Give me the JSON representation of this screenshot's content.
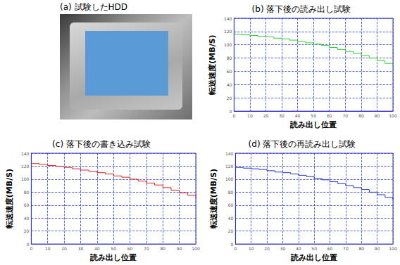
{
  "image_panel": {
    "title": "(a) 試験したHDD"
  },
  "chart_data": [
    {
      "type": "line",
      "title": "(b) 落下後の読み出し試験",
      "x_label": "読み出し位置",
      "y_label": "転送速度(MB/S)",
      "x": [
        0,
        5,
        10,
        15,
        20,
        25,
        30,
        35,
        40,
        45,
        50,
        55,
        60,
        65,
        70,
        75,
        80,
        85,
        90,
        95,
        100
      ],
      "series": [
        {
          "name": "読み出し",
          "color": "#33cc33",
          "line_style": "step",
          "values": [
            116,
            115,
            114,
            113,
            112,
            110,
            109,
            107,
            105,
            103,
            101,
            99,
            96,
            93,
            90,
            87,
            84,
            80,
            76,
            72,
            68
          ]
        }
      ],
      "xlim": [
        0,
        100
      ],
      "xticks": [
        0,
        10,
        20,
        30,
        40,
        50,
        60,
        70,
        80,
        90,
        100
      ],
      "ylim": [
        0,
        140
      ],
      "yticks": [
        0,
        20,
        40,
        60,
        80,
        100,
        120,
        140
      ],
      "grid": true
    },
    {
      "type": "line",
      "title": "(c) 落下後の書き込み試験",
      "x_label": "読み出し位置",
      "y_label": "転送速度(MB/S)",
      "x": [
        0,
        5,
        10,
        15,
        20,
        25,
        30,
        35,
        40,
        45,
        50,
        55,
        60,
        65,
        70,
        75,
        80,
        85,
        90,
        95,
        100
      ],
      "series": [
        {
          "name": "書き込み",
          "color": "#dd2222",
          "line_style": "step",
          "values": [
            124,
            123,
            121,
            120,
            118,
            116,
            114,
            112,
            110,
            108,
            105,
            103,
            100,
            97,
            94,
            91,
            87,
            83,
            79,
            75,
            71
          ]
        }
      ],
      "xlim": [
        0,
        100
      ],
      "xticks": [
        0,
        10,
        20,
        30,
        40,
        50,
        60,
        70,
        80,
        90,
        100
      ],
      "ylim": [
        0,
        140
      ],
      "yticks": [
        0,
        20,
        40,
        60,
        80,
        100,
        120,
        140
      ],
      "grid": true
    },
    {
      "type": "line",
      "title": "(d) 落下後の再読み出し試験",
      "x_label": "読み出し位置",
      "y_label": "転送速度(MB/S)",
      "x": [
        0,
        5,
        10,
        15,
        20,
        25,
        30,
        35,
        40,
        45,
        50,
        55,
        60,
        65,
        70,
        75,
        80,
        85,
        90,
        95,
        100
      ],
      "series": [
        {
          "name": "再読み出し",
          "color": "#2233cc",
          "line_style": "step",
          "values": [
            118,
            117,
            116,
            115,
            113,
            111,
            110,
            108,
            106,
            104,
            101,
            99,
            96,
            93,
            90,
            87,
            84,
            80,
            76,
            72,
            68
          ]
        }
      ],
      "xlim": [
        0,
        100
      ],
      "xticks": [
        0,
        10,
        20,
        30,
        40,
        50,
        60,
        70,
        80,
        90,
        100
      ],
      "ylim": [
        0,
        140
      ],
      "yticks": [
        0,
        20,
        40,
        60,
        80,
        100,
        120,
        140
      ],
      "grid": true
    }
  ]
}
